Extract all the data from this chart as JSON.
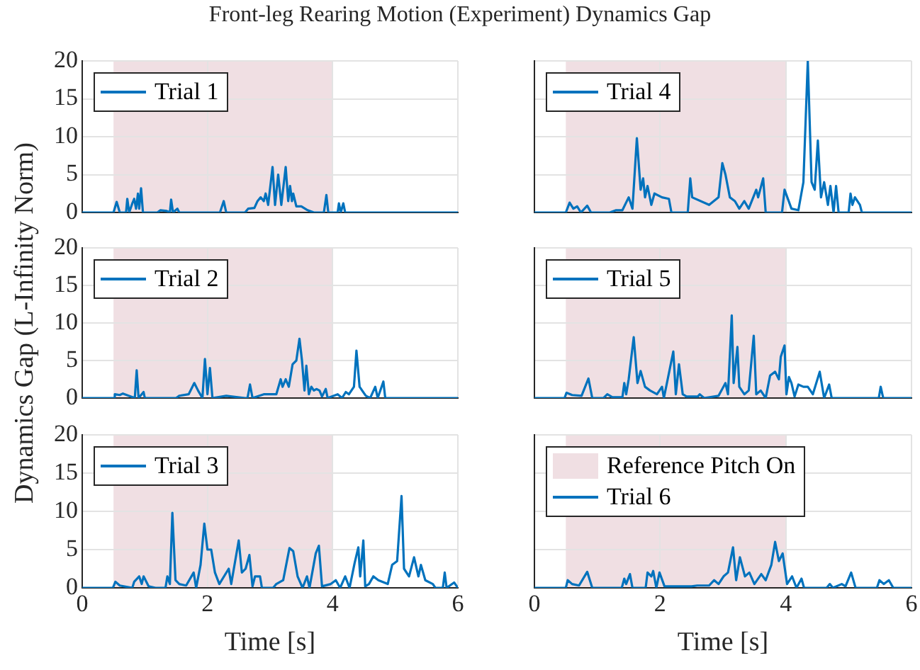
{
  "chart_data": [
    {
      "type": "line",
      "title": "Front-leg Rearing Motion (Experiment) Dynamics Gap",
      "xlim": [
        0,
        6
      ],
      "xticks": [
        0,
        2,
        4,
        6
      ],
      "ylim": [
        0,
        20
      ],
      "yticks": [
        0,
        5,
        10,
        15,
        20
      ],
      "grid": true,
      "legend": "top left",
      "tick_labels": "y",
      "bands": [
        {
          "axis": "x",
          "from": 0.5,
          "to": 4,
          "color": "#f0dfe3"
        }
      ],
      "series": [
        {
          "name": "Trial 1",
          "color": "#0072bd",
          "x": [
            0,
            0.5,
            0.55,
            0.6,
            0.7,
            0.72,
            0.75,
            0.8,
            0.83,
            0.86,
            0.89,
            0.91,
            0.94,
            0.97,
            1.2,
            1.25,
            1.35,
            1.4,
            1.42,
            1.45,
            1.52,
            1.55,
            2.2,
            2.26,
            2.3,
            2.6,
            2.65,
            2.75,
            2.8,
            2.85,
            2.9,
            2.93,
            2.97,
            3.04,
            3.08,
            3.13,
            3.18,
            3.25,
            3.29,
            3.32,
            3.35,
            3.37,
            3.42,
            3.5,
            3.6,
            3.7,
            3.86,
            3.9,
            3.93,
            4.08,
            4.1,
            4.13,
            4.17,
            4.2,
            6
          ],
          "values": [
            0,
            0,
            1.4,
            0,
            0,
            1.8,
            0,
            1.2,
            1.8,
            0.5,
            2.5,
            0.5,
            3.2,
            0,
            0,
            0.3,
            0.2,
            0,
            1.7,
            0,
            0.5,
            0,
            0,
            1.5,
            0,
            0,
            0.5,
            0.6,
            1.5,
            2,
            1.5,
            2.5,
            1,
            6,
            1,
            5,
            1,
            6,
            1.5,
            3.5,
            1.5,
            2.5,
            0.8,
            0.8,
            0.3,
            0,
            0,
            2.3,
            0,
            0,
            1.2,
            0,
            1.2,
            0,
            0
          ]
        }
      ]
    },
    {
      "type": "line",
      "xlim": [
        0,
        6
      ],
      "xticks": [
        0,
        2,
        4,
        6
      ],
      "ylim": [
        0,
        20
      ],
      "yticks": [
        0,
        5,
        10,
        15,
        20
      ],
      "grid": true,
      "legend": "top left",
      "tick_labels": false,
      "bands": [
        {
          "axis": "x",
          "from": 0.5,
          "to": 4,
          "color": "#f0dfe3"
        }
      ],
      "series": [
        {
          "name": "Trial 4",
          "color": "#0072bd",
          "x": [
            0,
            0.5,
            0.56,
            0.62,
            0.68,
            0.74,
            0.84,
            0.9,
            1.2,
            1.3,
            1.4,
            1.5,
            1.56,
            1.63,
            1.69,
            1.73,
            1.76,
            1.8,
            1.86,
            1.91,
            2.03,
            2.14,
            2.18,
            2.44,
            2.48,
            2.51,
            2.78,
            2.93,
            2.99,
            3.04,
            3.11,
            3.19,
            3.26,
            3.34,
            3.41,
            3.53,
            3.56,
            3.64,
            3.68,
            3.94,
            3.98,
            4.09,
            4.2,
            4.28,
            4.35,
            4.41,
            4.46,
            4.51,
            4.56,
            4.61,
            4.67,
            4.71,
            4.76,
            4.8,
            4.84,
            5.0,
            5.03,
            5.06,
            5.1,
            5.18,
            5.21,
            6
          ],
          "values": [
            0,
            0,
            1.3,
            0.5,
            0.8,
            0,
            0.9,
            0,
            0,
            0.3,
            0.3,
            2,
            0.5,
            9.8,
            3,
            4.5,
            2,
            3.5,
            1,
            2.5,
            2,
            1.8,
            0,
            0,
            4.5,
            2,
            1,
            2,
            6.5,
            5,
            2,
            1.5,
            0.5,
            1.5,
            0.5,
            3,
            2,
            4.5,
            0,
            0,
            3,
            0.5,
            0.3,
            4,
            20,
            4,
            3,
            9.5,
            2,
            4,
            1,
            3.5,
            0,
            3.5,
            0,
            0,
            2.5,
            1,
            2,
            1,
            0,
            0
          ]
        }
      ]
    },
    {
      "type": "line",
      "ylabel": "Dynamics Gap (L-Infinity Norm)",
      "xlim": [
        0,
        6
      ],
      "xticks": [
        0,
        2,
        4,
        6
      ],
      "ylim": [
        0,
        20
      ],
      "yticks": [
        0,
        5,
        10,
        15,
        20
      ],
      "grid": true,
      "legend": "top left",
      "tick_labels": "y",
      "bands": [
        {
          "axis": "x",
          "from": 0.5,
          "to": 4,
          "color": "#f0dfe3"
        }
      ],
      "series": [
        {
          "name": "Trial 2",
          "color": "#0072bd",
          "x": [
            0,
            0.5,
            0.52,
            0.6,
            0.65,
            0.84,
            0.87,
            0.9,
            0.98,
            1.0,
            1.5,
            1.55,
            1.7,
            1.79,
            1.85,
            1.92,
            1.96,
            2.0,
            2.04,
            2.08,
            2.3,
            2.6,
            2.64,
            2.68,
            2.72,
            2.9,
            3.1,
            3.17,
            3.2,
            3.25,
            3.3,
            3.36,
            3.42,
            3.47,
            3.51,
            3.55,
            3.58,
            3.62,
            3.66,
            3.7,
            3.74,
            3.79,
            3.83,
            3.89,
            3.92,
            4.08,
            4.15,
            4.21,
            4.26,
            4.34,
            4.38,
            4.43,
            4.53,
            4.6,
            4.68,
            4.72,
            4.81,
            4.84,
            6
          ],
          "values": [
            0,
            0,
            0.5,
            0.4,
            0.6,
            0,
            3.7,
            0,
            0.8,
            0,
            0,
            0.3,
            0.5,
            2,
            1,
            0,
            5.2,
            0.5,
            4,
            0,
            0.3,
            0,
            0,
            1.8,
            0,
            0.5,
            0.5,
            2.5,
            1.5,
            2.5,
            1.5,
            4.5,
            5,
            7.9,
            5,
            1,
            4.3,
            0.5,
            1.5,
            1,
            1.2,
            1,
            0.2,
            1.2,
            0,
            0.5,
            0,
            0.8,
            0.5,
            1.5,
            6.3,
            1.5,
            0.3,
            0,
            1.5,
            0,
            2.2,
            0,
            0
          ]
        }
      ]
    },
    {
      "type": "line",
      "xlim": [
        0,
        6
      ],
      "xticks": [
        0,
        2,
        4,
        6
      ],
      "ylim": [
        0,
        20
      ],
      "yticks": [
        0,
        5,
        10,
        15,
        20
      ],
      "grid": true,
      "legend": "top left",
      "tick_labels": false,
      "bands": [
        {
          "axis": "x",
          "from": 0.5,
          "to": 4,
          "color": "#f0dfe3"
        }
      ],
      "series": [
        {
          "name": "Trial 5",
          "color": "#0072bd",
          "x": [
            0,
            0.48,
            0.51,
            0.6,
            0.75,
            0.86,
            0.92,
            1.1,
            1.16,
            1.24,
            1.4,
            1.43,
            1.46,
            1.5,
            1.58,
            1.64,
            1.69,
            1.76,
            1.84,
            1.95,
            2.03,
            2.06,
            2.21,
            2.25,
            2.3,
            2.36,
            2.42,
            2.6,
            2.63,
            2.7,
            2.93,
            3.04,
            3.08,
            3.14,
            3.17,
            3.23,
            3.26,
            3.34,
            3.41,
            3.49,
            3.53,
            3.6,
            3.68,
            3.75,
            3.83,
            3.89,
            3.92,
            3.98,
            4.01,
            4.05,
            4.09,
            4.14,
            4.2,
            4.28,
            4.35,
            4.43,
            4.54,
            4.61,
            4.69,
            4.73,
            5.48,
            5.51,
            5.55,
            6
          ],
          "values": [
            0,
            0,
            0.7,
            0.4,
            0.3,
            2.6,
            0,
            0,
            0.5,
            0.1,
            0.1,
            2,
            0.5,
            2.5,
            8.1,
            2,
            3.6,
            1.5,
            1,
            0.5,
            1.5,
            0,
            6.2,
            0.5,
            4.5,
            0.5,
            0.2,
            0.2,
            0.5,
            0,
            0.3,
            2,
            0.5,
            11,
            2,
            6.8,
            1.5,
            0.5,
            1,
            8.3,
            0.5,
            1,
            0,
            3,
            3.5,
            2.5,
            5.5,
            7,
            0.5,
            2.8,
            2,
            0.2,
            1.8,
            1.5,
            1.5,
            0.5,
            3.5,
            0,
            1.8,
            0,
            0,
            1.5,
            0,
            0
          ]
        }
      ]
    },
    {
      "type": "line",
      "xlabel": "Time [s]",
      "xlim": [
        0,
        6
      ],
      "xticks": [
        0,
        2,
        4,
        6
      ],
      "ylim": [
        0,
        20
      ],
      "yticks": [
        0,
        5,
        10,
        15,
        20
      ],
      "grid": true,
      "legend": "top left",
      "bands": [
        {
          "axis": "x",
          "from": 0.5,
          "to": 4,
          "color": "#f0dfe3"
        }
      ],
      "series": [
        {
          "name": "Trial 3",
          "color": "#0072bd",
          "x": [
            0,
            0.49,
            0.53,
            0.6,
            0.8,
            0.83,
            0.91,
            0.95,
            0.98,
            1.06,
            1.17,
            1.33,
            1.36,
            1.4,
            1.44,
            1.49,
            1.55,
            1.66,
            1.78,
            1.82,
            1.89,
            1.95,
            2.0,
            2.06,
            2.12,
            2.19,
            2.34,
            2.38,
            2.5,
            2.55,
            2.61,
            2.67,
            2.72,
            2.76,
            2.84,
            2.87,
            3.05,
            3.1,
            3.21,
            3.31,
            3.37,
            3.44,
            3.52,
            3.59,
            3.63,
            3.73,
            3.78,
            3.83,
            3.97,
            4.05,
            4.12,
            4.2,
            4.27,
            4.35,
            4.41,
            4.44,
            4.49,
            4.52,
            4.58,
            4.65,
            4.73,
            4.88,
            4.95,
            5.03,
            5.1,
            5.14,
            5.22,
            5.3,
            5.37,
            5.41,
            5.48,
            5.6,
            5.64,
            5.76,
            5.79,
            5.82,
            5.94,
            6
          ],
          "values": [
            0,
            0,
            0.8,
            0.3,
            0,
            0.8,
            1.5,
            0.5,
            1.5,
            0.2,
            0,
            0,
            1.5,
            0.5,
            9.8,
            1,
            0.5,
            0.3,
            2,
            0,
            3,
            8.4,
            5,
            5,
            2,
            0.5,
            2.5,
            0.5,
            6.2,
            2,
            2.5,
            4.3,
            0.2,
            1.5,
            1.5,
            0,
            0,
            0.5,
            1,
            5.2,
            4.8,
            1.5,
            0,
            1.5,
            0,
            4.5,
            5.5,
            0.2,
            0.5,
            1,
            0,
            1.5,
            0,
            3.2,
            5.3,
            1.5,
            6.2,
            0.2,
            0.5,
            1.5,
            1,
            0.5,
            3,
            3.5,
            12,
            2.5,
            1.5,
            4,
            1.5,
            3,
            1,
            0.5,
            0,
            0,
            2,
            0,
            0.7,
            0
          ]
        }
      ]
    },
    {
      "type": "line",
      "xlabel": "Time [s]",
      "xlim": [
        0,
        6
      ],
      "xticks": [
        0,
        2,
        4,
        6
      ],
      "ylim": [
        0,
        20
      ],
      "yticks": [
        0,
        5,
        10,
        15,
        20
      ],
      "grid": true,
      "legend": "top left",
      "tick_labels": "x",
      "bands": [
        {
          "axis": "x",
          "from": 0.5,
          "to": 4,
          "color": "#f0dfe3",
          "label": "Reference Pitch On"
        }
      ],
      "series": [
        {
          "name": "Trial 6",
          "color": "#0072bd",
          "x": [
            0,
            0.5,
            0.53,
            0.6,
            0.71,
            0.84,
            0.92,
            1.39,
            1.43,
            1.46,
            1.52,
            1.56,
            1.77,
            1.8,
            1.86,
            1.89,
            1.94,
            1.99,
            2.07,
            2.5,
            2.59,
            2.78,
            2.86,
            2.93,
            3.01,
            3.08,
            3.16,
            3.21,
            3.27,
            3.35,
            3.42,
            3.5,
            3.61,
            3.68,
            3.77,
            3.83,
            3.89,
            3.95,
            4.02,
            4.1,
            4.17,
            4.25,
            4.29,
            4.65,
            4.7,
            4.75,
            4.89,
            4.95,
            5.04,
            5.11,
            5.45,
            5.49,
            5.56,
            5.64,
            5.71,
            6
          ],
          "values": [
            0,
            0,
            1,
            0.5,
            0.3,
            2.1,
            0,
            0,
            1.2,
            0.5,
            1.8,
            0,
            0,
            2,
            1.5,
            2.2,
            0,
            2,
            0.2,
            0.2,
            0.3,
            0.3,
            1,
            0.5,
            1.5,
            2,
            5.3,
            1,
            4,
            1.5,
            2,
            0.5,
            1.8,
            1,
            3,
            6,
            3.5,
            4.5,
            0.5,
            1.5,
            0,
            1.2,
            0,
            0,
            0.5,
            0,
            0.5,
            0.2,
            2,
            0,
            0,
            1,
            0.5,
            1,
            0,
            0
          ]
        }
      ]
    }
  ]
}
